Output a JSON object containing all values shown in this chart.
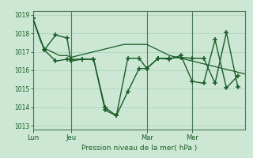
{
  "bg_color": "#cce8d4",
  "grid_color": "#aacfb8",
  "line_color": "#1a5c28",
  "xlabel": "Pression niveau de la mer( hPa )",
  "ylim": [
    1012.8,
    1019.2
  ],
  "yticks": [
    1013,
    1014,
    1015,
    1016,
    1017,
    1018,
    1019
  ],
  "xtick_labels": [
    "Lun",
    "Jeu",
    "Mar",
    "Mer"
  ],
  "xtick_positions": [
    0,
    10,
    30,
    42
  ],
  "vline_positions": [
    0,
    10,
    30,
    42
  ],
  "xlim": [
    0,
    56
  ],
  "series0_x": [
    0,
    1,
    2,
    3,
    4,
    5,
    6,
    7,
    8,
    9,
    10,
    12,
    14,
    16,
    18,
    20,
    22,
    24,
    26,
    28,
    30,
    32,
    34,
    36,
    38,
    40,
    42,
    44,
    46,
    48,
    50,
    52,
    54,
    56
  ],
  "series0_y": [
    1018.8,
    1018.2,
    1017.6,
    1017.2,
    1017.1,
    1017.0,
    1016.9,
    1016.8,
    1016.8,
    1016.8,
    1016.7,
    1016.8,
    1016.9,
    1017.0,
    1017.1,
    1017.2,
    1017.3,
    1017.4,
    1017.4,
    1017.4,
    1017.4,
    1017.2,
    1017.0,
    1016.8,
    1016.7,
    1016.6,
    1016.5,
    1016.4,
    1016.3,
    1016.2,
    1016.1,
    1016.0,
    1015.9,
    1015.8
  ],
  "series1_x": [
    0,
    3,
    6,
    9,
    10,
    13,
    16,
    19,
    22,
    25,
    28,
    30,
    33,
    36,
    39,
    42,
    45,
    48,
    51,
    54
  ],
  "series1_y": [
    1018.8,
    1017.1,
    1017.9,
    1017.75,
    1016.5,
    1016.6,
    1016.6,
    1013.85,
    1013.55,
    1014.85,
    1016.1,
    1016.1,
    1016.65,
    1016.65,
    1016.7,
    1016.65,
    1016.65,
    1015.3,
    1018.05,
    1015.1
  ],
  "series2_x": [
    0,
    3,
    6,
    9,
    10,
    13,
    16,
    19,
    22,
    25,
    28,
    30,
    33,
    36,
    39,
    42,
    45,
    48,
    51,
    54
  ],
  "series2_y": [
    1018.8,
    1017.1,
    1016.5,
    1016.6,
    1016.6,
    1016.6,
    1016.6,
    1014.0,
    1013.55,
    1016.65,
    1016.65,
    1016.1,
    1016.65,
    1016.6,
    1016.8,
    1015.4,
    1015.3,
    1017.65,
    1015.05,
    1015.7
  ]
}
